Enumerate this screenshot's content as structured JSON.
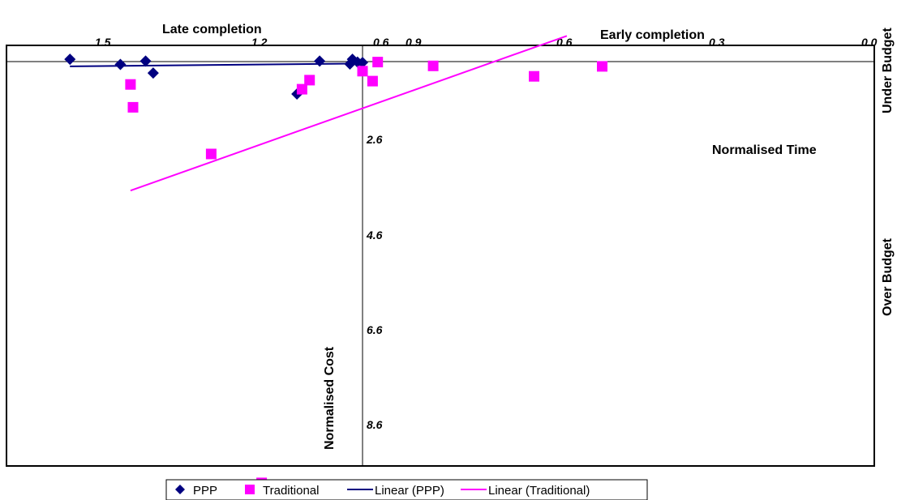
{
  "chart_data": {
    "type": "scatter",
    "annotations": {
      "late_completion": "Late completion",
      "early_completion": "Early completion",
      "normalised_time": "Normalised Time",
      "normalised_cost": "Normalised Cost",
      "under_budget": "Under Budget",
      "over_budget": "Over Budget"
    },
    "x_ticks_left": [
      "1.5",
      "1.2",
      "0.6"
    ],
    "x_ticks_right": [
      "0.9",
      "0.6",
      "0.3",
      "0.0"
    ],
    "y_ticks": [
      "2.6",
      "4.6",
      "6.6",
      "8.6"
    ],
    "series": [
      {
        "name": "PPP",
        "marker": "diamond",
        "color": "#000080",
        "points": [
          {
            "x": 1.48,
            "y": 0.55
          },
          {
            "x": 1.38,
            "y": 0.66
          },
          {
            "x": 1.33,
            "y": 0.59
          },
          {
            "x": 1.315,
            "y": 0.84
          },
          {
            "x": 1.03,
            "y": 1.28
          },
          {
            "x": 0.985,
            "y": 0.59
          },
          {
            "x": 0.925,
            "y": 0.65
          },
          {
            "x": 0.92,
            "y": 0.55
          },
          {
            "x": 0.91,
            "y": 0.61
          },
          {
            "x": 0.9,
            "y": 0.62
          }
        ]
      },
      {
        "name": "Traditional",
        "marker": "square",
        "color": "#FF00FF",
        "points": [
          {
            "x": 1.36,
            "y": 1.08
          },
          {
            "x": 1.355,
            "y": 1.56
          },
          {
            "x": 1.2,
            "y": 2.54
          },
          {
            "x": 1.02,
            "y": 1.18
          },
          {
            "x": 1.005,
            "y": 0.99
          },
          {
            "x": 0.9,
            "y": 0.8
          },
          {
            "x": 0.88,
            "y": 1.01
          },
          {
            "x": 0.87,
            "y": 0.61
          },
          {
            "x": 0.76,
            "y": 0.69
          },
          {
            "x": 0.56,
            "y": 0.91
          },
          {
            "x": 0.425,
            "y": 0.7
          },
          {
            "x": 1.1,
            "y": 9.45
          }
        ]
      }
    ],
    "trendlines": [
      {
        "name": "Linear (PPP)",
        "color": "#000080",
        "x": [
          1.48,
          0.9
        ],
        "y": [
          0.7,
          0.64
        ]
      },
      {
        "name": "Linear (Traditional)",
        "color": "#FF00FF",
        "x": [
          1.36,
          0.495
        ],
        "y": [
          3.31,
          0.06
        ]
      }
    ],
    "legend": {
      "placement": "bottom",
      "items": [
        {
          "label": "PPP",
          "marker": "diamond",
          "color": "#000080"
        },
        {
          "label": "Traditional",
          "marker": "square",
          "color": "#FF00FF"
        },
        {
          "label": "Linear (PPP)",
          "marker": "line",
          "color": "#000080"
        },
        {
          "label": "Linear (Traditional)",
          "marker": "line",
          "color": "#FF00FF"
        }
      ]
    },
    "grid": false
  }
}
